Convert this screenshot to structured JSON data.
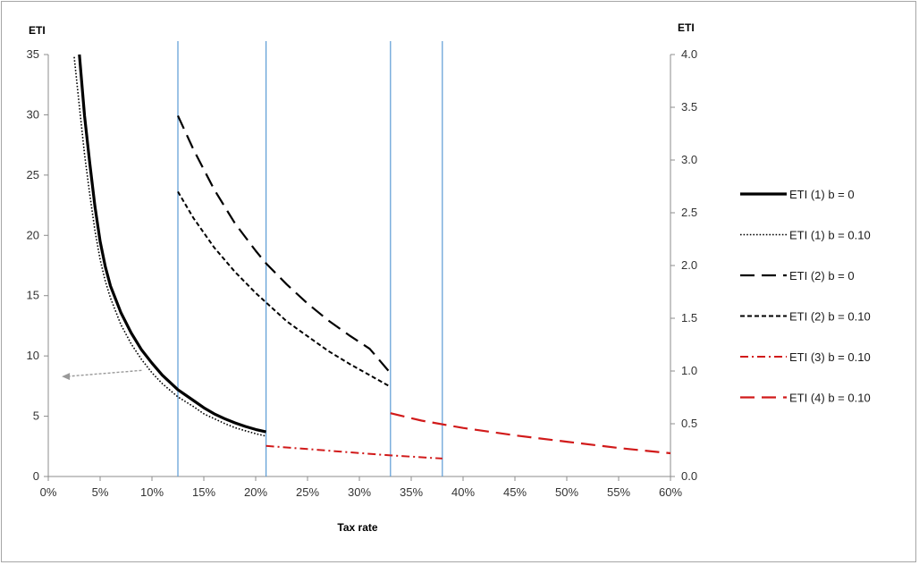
{
  "chart_data": {
    "type": "line",
    "xlabel": "Tax rate",
    "ylabel_left": "ETI",
    "ylabel_right": "ETI",
    "xlim": [
      0,
      0.6
    ],
    "ylim_left": [
      0,
      35
    ],
    "ylim_right": [
      0,
      4.0
    ],
    "x_ticks": [
      "0%",
      "5%",
      "10%",
      "15%",
      "20%",
      "25%",
      "30%",
      "35%",
      "40%",
      "45%",
      "50%",
      "55%",
      "60%"
    ],
    "y_ticks_left": [
      "0",
      "5",
      "10",
      "15",
      "20",
      "25",
      "30",
      "35"
    ],
    "y_ticks_right": [
      "0.0",
      "0.5",
      "1.0",
      "1.5",
      "2.0",
      "2.5",
      "3.0",
      "3.5",
      "4.0"
    ],
    "vertical_lines_x": [
      0.125,
      0.21,
      0.33,
      0.38
    ],
    "arrow": {
      "from": [
        0.09,
        8.8
      ],
      "to": [
        0.013,
        8.3
      ],
      "color": "#999999"
    },
    "series": [
      {
        "name": "ETI (1)  b = 0",
        "axis": "left",
        "color": "#000000",
        "style": "solid-thick",
        "points": [
          [
            0.03,
            35
          ],
          [
            0.035,
            29.9
          ],
          [
            0.04,
            26.0
          ],
          [
            0.045,
            22.4
          ],
          [
            0.05,
            19.5
          ],
          [
            0.055,
            17.4
          ],
          [
            0.06,
            15.8
          ],
          [
            0.07,
            13.6
          ],
          [
            0.08,
            11.9
          ],
          [
            0.09,
            10.5
          ],
          [
            0.1,
            9.4
          ],
          [
            0.11,
            8.4
          ],
          [
            0.125,
            7.2
          ],
          [
            0.14,
            6.3
          ],
          [
            0.15,
            5.7
          ],
          [
            0.16,
            5.2
          ],
          [
            0.17,
            4.8
          ],
          [
            0.18,
            4.45
          ],
          [
            0.19,
            4.15
          ],
          [
            0.2,
            3.9
          ],
          [
            0.21,
            3.7
          ]
        ]
      },
      {
        "name": "ETI (1)  b = 0.10",
        "axis": "left",
        "color": "#000000",
        "style": "dotted",
        "points": [
          [
            0.025,
            34.8
          ],
          [
            0.03,
            30.7
          ],
          [
            0.035,
            26.7
          ],
          [
            0.04,
            23.4
          ],
          [
            0.045,
            20.4
          ],
          [
            0.05,
            18.0
          ],
          [
            0.055,
            16.2
          ],
          [
            0.06,
            14.8
          ],
          [
            0.07,
            12.6
          ],
          [
            0.08,
            11.0
          ],
          [
            0.09,
            9.7
          ],
          [
            0.1,
            8.6
          ],
          [
            0.11,
            7.7
          ],
          [
            0.125,
            6.6
          ],
          [
            0.14,
            5.8
          ],
          [
            0.15,
            5.2
          ],
          [
            0.16,
            4.8
          ],
          [
            0.17,
            4.4
          ],
          [
            0.18,
            4.05
          ],
          [
            0.19,
            3.8
          ],
          [
            0.2,
            3.55
          ],
          [
            0.21,
            3.35
          ]
        ]
      },
      {
        "name": "ETI (2)  b = 0",
        "axis": "right",
        "color": "#000000",
        "style": "long-dash",
        "points": [
          [
            0.125,
            3.42
          ],
          [
            0.14,
            3.1
          ],
          [
            0.16,
            2.72
          ],
          [
            0.18,
            2.4
          ],
          [
            0.2,
            2.14
          ],
          [
            0.21,
            2.02
          ],
          [
            0.23,
            1.82
          ],
          [
            0.25,
            1.64
          ],
          [
            0.27,
            1.48
          ],
          [
            0.29,
            1.34
          ],
          [
            0.31,
            1.21
          ],
          [
            0.33,
            0.98
          ]
        ]
      },
      {
        "name": "ETI (2)  b = 0.10",
        "axis": "right",
        "color": "#000000",
        "style": "short-dash",
        "points": [
          [
            0.125,
            2.7
          ],
          [
            0.14,
            2.45
          ],
          [
            0.16,
            2.17
          ],
          [
            0.18,
            1.94
          ],
          [
            0.2,
            1.74
          ],
          [
            0.21,
            1.65
          ],
          [
            0.23,
            1.47
          ],
          [
            0.25,
            1.33
          ],
          [
            0.27,
            1.19
          ],
          [
            0.29,
            1.07
          ],
          [
            0.31,
            0.96
          ],
          [
            0.33,
            0.85
          ]
        ]
      },
      {
        "name": "ETI (3)  b = 0.10",
        "axis": "right",
        "color": "#d11a1a",
        "style": "dash-dot",
        "points": [
          [
            0.21,
            0.29
          ],
          [
            0.25,
            0.26
          ],
          [
            0.29,
            0.23
          ],
          [
            0.33,
            0.2
          ],
          [
            0.38,
            0.17
          ]
        ]
      },
      {
        "name": "ETI (4)  b = 0.10",
        "axis": "right",
        "color": "#d11a1a",
        "style": "long-dash",
        "points": [
          [
            0.33,
            0.6
          ],
          [
            0.36,
            0.53
          ],
          [
            0.4,
            0.46
          ],
          [
            0.45,
            0.39
          ],
          [
            0.5,
            0.33
          ],
          [
            0.55,
            0.27
          ],
          [
            0.6,
            0.22
          ]
        ]
      }
    ]
  }
}
